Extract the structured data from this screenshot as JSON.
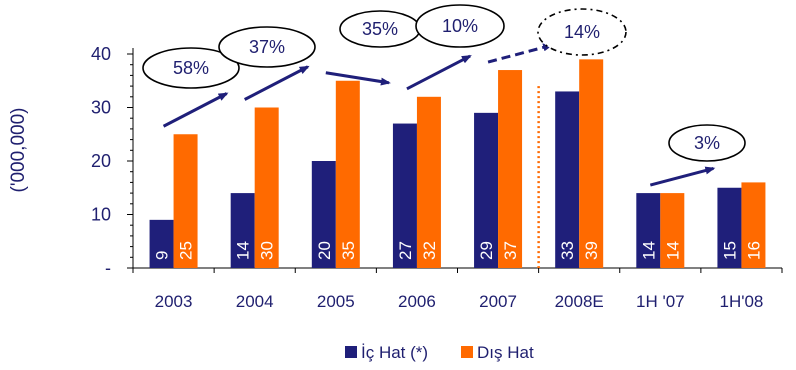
{
  "chart_data": {
    "type": "bar",
    "ylabel": "('000,000)",
    "yticks": [
      "-",
      "10",
      "20",
      "30",
      "40"
    ],
    "ytick_values": [
      0,
      10,
      20,
      30,
      40
    ],
    "ylim": [
      0,
      40
    ],
    "categories": [
      "2003",
      "2004",
      "2005",
      "2006",
      "2007",
      "2008E",
      "1H '07",
      "1H'08"
    ],
    "series": [
      {
        "name": "İç Hat (*)",
        "color": "#1f1f7a",
        "values": [
          9,
          14,
          20,
          27,
          29,
          33,
          14,
          15
        ]
      },
      {
        "name": "Dış Hat",
        "color": "#ff6a00",
        "values": [
          25,
          30,
          35,
          32,
          37,
          39,
          14,
          16
        ]
      }
    ],
    "growth_labels": [
      {
        "text": "58%",
        "from": "2003",
        "to": "2004",
        "style": "solid"
      },
      {
        "text": "37%",
        "from": "2004",
        "to": "2005",
        "style": "solid"
      },
      {
        "text": "35%",
        "from": "2005",
        "to": "2006",
        "style": "solid"
      },
      {
        "text": "10%",
        "from": "2006",
        "to": "2007",
        "style": "solid"
      },
      {
        "text": "14%",
        "from": "2007",
        "to": "2008E",
        "style": "dashed"
      },
      {
        "text": "3%",
        "from": "1H '07",
        "to": "1H'08",
        "style": "solid"
      }
    ],
    "forecast_divider_after": "2007",
    "legend": "bottom",
    "grid": false
  }
}
